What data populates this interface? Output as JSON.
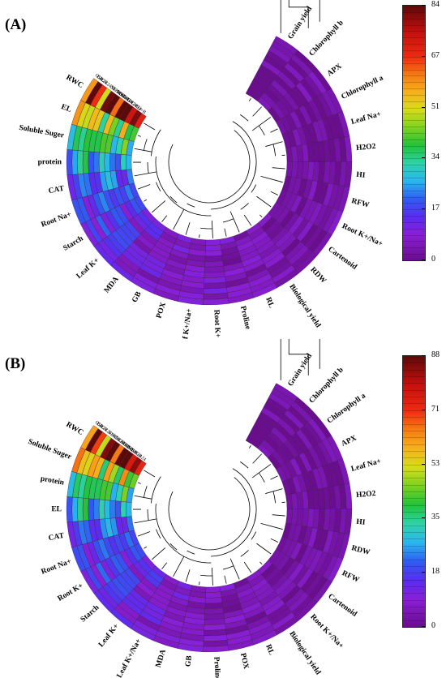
{
  "panels": [
    {
      "id": "A",
      "label": "(A)",
      "colorbar": {
        "min": 0,
        "max": 84,
        "ticks": [
          "84",
          "67",
          "51",
          "34",
          "17",
          "0"
        ]
      },
      "row_labels": [
        "Grain yield",
        "Chlorophyll b",
        "APX",
        "Chlorophyll a",
        "Leaf Na+",
        "H2O2",
        "HI",
        "RFW",
        "Root K+/Na+",
        "Cartenoid",
        "RDW",
        "Biological yield",
        "RL",
        "Proline",
        "Root K+",
        "Leaf K+/Na+",
        "POX",
        "GB",
        "MDA",
        "Leaf K+",
        "Starch",
        "Root Na+",
        "CAT",
        "protein",
        "Soluble Suger",
        "EL",
        "RWC"
      ],
      "column_labels": [
        "S2+B",
        "S2+B+GR24",
        "S1+B+GR24",
        "S1+GR24",
        "S2+GR24",
        "S2",
        "S1+B",
        "S1",
        "B+GR24",
        "GR24",
        "B",
        "C"
      ],
      "row_levels": [
        2,
        2,
        3,
        2,
        2,
        2,
        2,
        3,
        3,
        3,
        3,
        4,
        5,
        5,
        6,
        6,
        6,
        7,
        9,
        12,
        14,
        17,
        20,
        28,
        34,
        45,
        70
      ]
    },
    {
      "id": "B",
      "label": "(B)",
      "colorbar": {
        "min": 0,
        "max": 88,
        "ticks": [
          "88",
          "71",
          "53",
          "35",
          "18",
          "0"
        ]
      },
      "row_labels": [
        "Grain yield",
        "Chlorophyll b",
        "Chlorophyll a",
        "APX",
        "Leaf Na+",
        "H2O2",
        "HI",
        "RDW",
        "RFW",
        "Cartenoid",
        "Root K+/Na+",
        "Biological yield",
        "RL",
        "POX",
        "Proline",
        "GB",
        "MDA",
        "Leaf K+/Na+",
        "Leaf K+",
        "Starch",
        "Root K+",
        "Root Na+",
        "CAT",
        "EL",
        "protein",
        "Soluble Suger",
        "RWC"
      ],
      "column_labels": [
        "S2+B+GR24",
        "S1+B+GR24",
        "S2+B",
        "S1+B",
        "S2+GR24",
        "S1+GR24",
        "S2",
        "S1",
        "B+GR24",
        "GR24",
        "B",
        "C"
      ],
      "row_levels": [
        2,
        2,
        2,
        3,
        2,
        2,
        2,
        3,
        3,
        3,
        3,
        4,
        4,
        5,
        5,
        6,
        7,
        8,
        11,
        13,
        15,
        17,
        20,
        30,
        35,
        50,
        72
      ]
    }
  ]
}
